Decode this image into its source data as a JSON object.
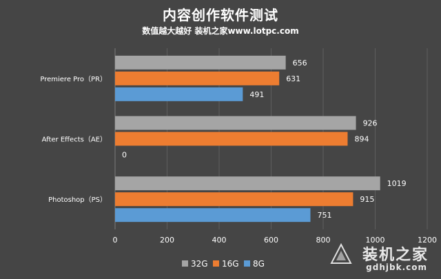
{
  "chart_data": {
    "type": "bar",
    "orientation": "horizontal",
    "title": "内容创作软件测试",
    "subtitle": "数值越大越好 装机之家www.lotpc.com",
    "categories": [
      "Premiere Pro（PR）",
      "After Effects（AE）",
      "Photoshop（PS）"
    ],
    "series": [
      {
        "name": "32G",
        "color": "#a5a5a5",
        "values": [
          656,
          926,
          1019
        ]
      },
      {
        "name": "16G",
        "color": "#ed7d31",
        "values": [
          631,
          894,
          915
        ]
      },
      {
        "name": "8G",
        "color": "#5b9bd5",
        "values": [
          491,
          0,
          751
        ]
      }
    ],
    "xlim": [
      0,
      1200
    ],
    "xticks": [
      0,
      200,
      400,
      600,
      800,
      1000,
      1200
    ],
    "grid": true,
    "legend": "bottom",
    "background": "#454545",
    "text_color": "#ffffff"
  },
  "watermark": {
    "main": "装机之家",
    "domain": "gdhjbk.com"
  }
}
